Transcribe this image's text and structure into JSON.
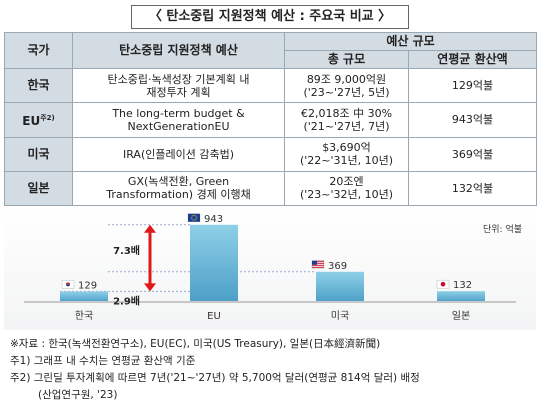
{
  "title": "〈 탄소중립 지원정책 예산 : 주요국 비교 〉",
  "table": {
    "headers": {
      "country": "국가",
      "policy": "탄소중립 지원정책 예산",
      "budget_group": "예산 규모",
      "total": "총 규모",
      "annual": "연평균 환산액"
    },
    "rows": [
      {
        "country": "한국",
        "sup": "",
        "policy_line1": "탄소중립·녹색성장 기본계획 내",
        "policy_line2": "재정투자 계획",
        "total_line1": "89조 9,000억원",
        "total_line2": "('23~'27년, 5년)",
        "annual": "129억불"
      },
      {
        "country": "EU",
        "sup": "주2)",
        "policy_line1": "The long-term budget &",
        "policy_line2": "NextGenerationEU",
        "total_line1": "€2,018조 中 30%",
        "total_line2": "('21~'27년, 7년)",
        "annual": "943억불"
      },
      {
        "country": "미국",
        "sup": "",
        "policy_line1": "IRA(인플레이션 감축법)",
        "policy_line2": "",
        "total_line1": "$3,690억",
        "total_line2": "('22~'31년, 10년)",
        "annual": "369억불"
      },
      {
        "country": "일본",
        "sup": "",
        "policy_line1": "GX(녹색전환, Green",
        "policy_line2": "Transformation) 경제 이행채",
        "total_line1": "20조엔",
        "total_line2": "('23~'32년, 10년)",
        "annual": "132억불"
      }
    ]
  },
  "chart_data": {
    "type": "bar",
    "categories": [
      "한국",
      "EU",
      "미국",
      "일본"
    ],
    "values": [
      129,
      943,
      369,
      132
    ],
    "value_labels": [
      "129",
      "943",
      "369",
      "132"
    ],
    "unit": "단위: 억불",
    "ylim": [
      0,
      1050
    ],
    "annotations": [
      {
        "text": "7.3배",
        "from": 129,
        "to": 943
      },
      {
        "text": "2.9배",
        "from": 129,
        "to": 369
      }
    ],
    "flags": [
      "korea-flag-icon",
      "eu-flag-icon",
      "us-flag-icon",
      "japan-flag-icon"
    ],
    "colors": {
      "bar_top": "#8fd0e8",
      "bar_bottom": "#4c9fc8",
      "arrow": "#e01818",
      "baseline": "#c8c8c8"
    }
  },
  "notes": {
    "source": "※자료 : 한국(녹색전환연구소), EU(EC), 미국(US Treasury), 일본(日本經濟新聞)",
    "note1": "주1) 그래프 내 수치는 연평균 환산액 기준",
    "note2_line1": "주2) 그린딜 투자계획에 따르면 7년('21~'27년) 약 5,700억 달러(연평균 814억 달러) 배정",
    "note2_line2": "(산업연구원, '23)"
  }
}
